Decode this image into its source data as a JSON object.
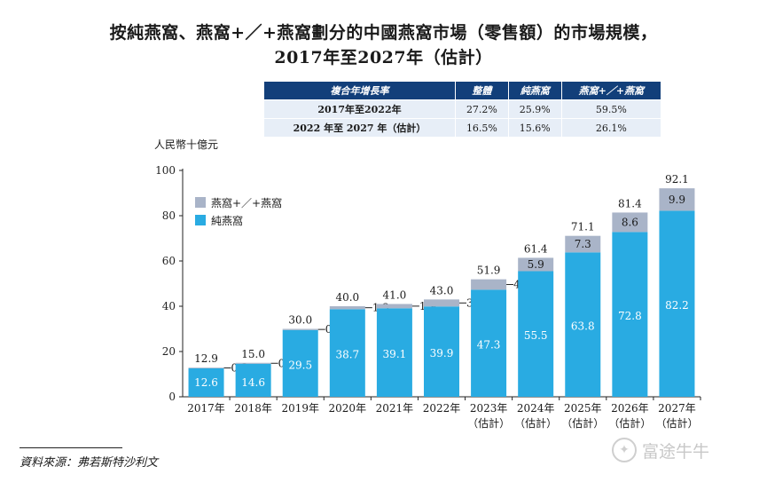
{
  "title_line1": "按純燕窩、燕窩+／+燕窩劃分的中國燕窩市場（零售額）的市場規模，",
  "title_line2": "2017年至2027年（估計）",
  "cagr_table": {
    "headers": [
      "複合年增長率",
      "整體",
      "純燕窩",
      "燕窩+／+燕窩"
    ],
    "rows": [
      {
        "label": "2017年至2022年",
        "values": [
          "27.2%",
          "25.9%",
          "59.5%"
        ]
      },
      {
        "label": "2022 年至 2027 年（估計）",
        "values": [
          "16.5%",
          "15.6%",
          "26.1%"
        ]
      }
    ]
  },
  "source": "資料來源：弗若斯特沙利文",
  "watermark": "富途牛牛",
  "colors": {
    "pure": "#29abe2",
    "plus": "#a9b4c8",
    "table_header": "#123f7a",
    "table_cell": "#e7eef7"
  },
  "chart_data": {
    "type": "bar",
    "stacked": true,
    "ylabel": "人民幣十億元",
    "ylim": [
      0,
      100
    ],
    "yticks": [
      0,
      20,
      40,
      60,
      80,
      100
    ],
    "categories": [
      [
        "2017年"
      ],
      [
        "2018年"
      ],
      [
        "2019年"
      ],
      [
        "2020年"
      ],
      [
        "2021年"
      ],
      [
        "2022年"
      ],
      [
        "2023年",
        "（估計）"
      ],
      [
        "2024年",
        "（估計）"
      ],
      [
        "2025年",
        "（估計）"
      ],
      [
        "2026年",
        "（估計）"
      ],
      [
        "2027年",
        "（估計）"
      ]
    ],
    "series": [
      {
        "name": "純燕窩",
        "values": [
          12.6,
          14.6,
          29.5,
          38.7,
          39.1,
          39.9,
          47.3,
          55.5,
          63.8,
          72.8,
          82.2
        ]
      },
      {
        "name": "燕窩+／+燕窩",
        "values": [
          0.3,
          0.4,
          0.5,
          1.3,
          1.9,
          3.1,
          4.6,
          5.9,
          7.3,
          8.6,
          9.9
        ]
      }
    ],
    "totals": [
      12.9,
      15.0,
      30.0,
      40.0,
      41.0,
      43.0,
      51.9,
      61.4,
      71.1,
      81.4,
      92.1
    ],
    "legend_order": [
      "燕窩+／+燕窩",
      "純燕窩"
    ],
    "legend_position": "top-left",
    "grid": false
  }
}
